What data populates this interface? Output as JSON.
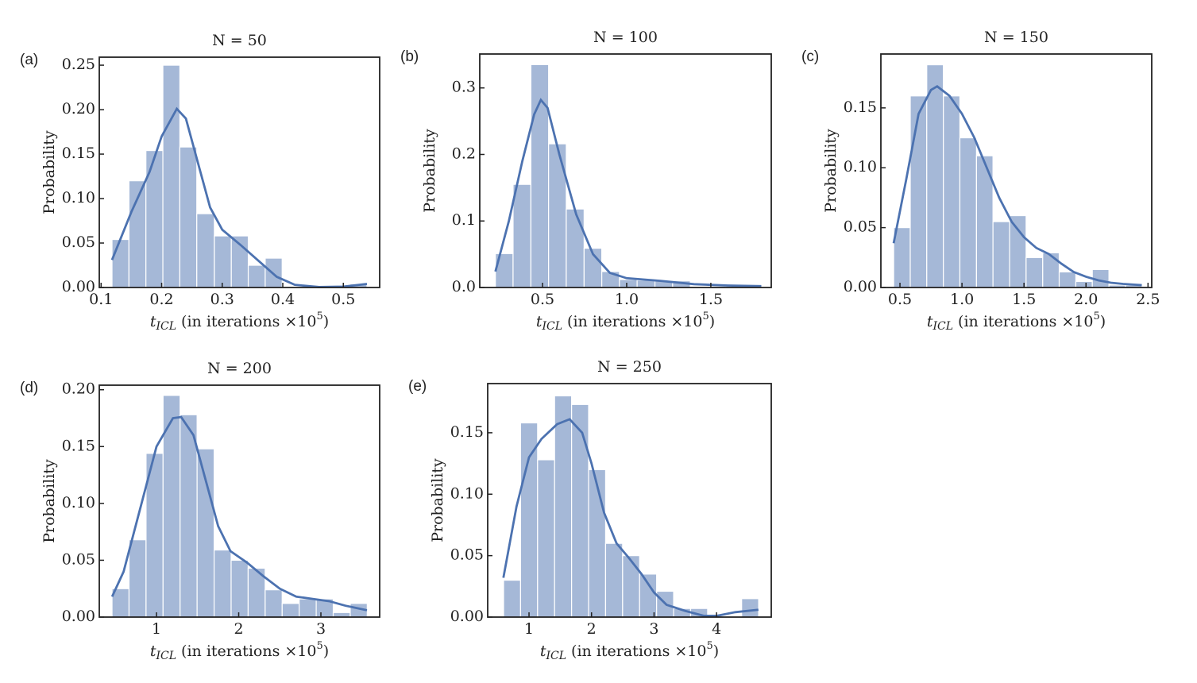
{
  "chart_data": [
    {
      "type": "histogram",
      "panel": "(a)",
      "title": "N = 50",
      "ylabel": "Probability",
      "xlabel": [
        "t",
        "ICL",
        " (in iterations ×10",
        "5",
        ")"
      ],
      "color": "#4c72b0",
      "bins": [
        0.118,
        0.146,
        0.174,
        0.202,
        0.23,
        0.258,
        0.287,
        0.315,
        0.343,
        0.371,
        0.399,
        0.427,
        0.455,
        0.483,
        0.511,
        0.539
      ],
      "values": [
        0.054,
        0.12,
        0.154,
        0.25,
        0.158,
        0.083,
        0.058,
        0.058,
        0.025,
        0.033,
        0,
        0,
        0,
        0,
        0.004
      ],
      "kde_x": [
        0.118,
        0.15,
        0.18,
        0.2,
        0.225,
        0.24,
        0.26,
        0.28,
        0.3,
        0.33,
        0.36,
        0.39,
        0.42,
        0.46,
        0.5,
        0.539
      ],
      "kde_y": [
        0.031,
        0.085,
        0.13,
        0.17,
        0.201,
        0.19,
        0.14,
        0.09,
        0.065,
        0.048,
        0.03,
        0.012,
        0.003,
        0.0005,
        0.001,
        0.004
      ],
      "xlim": [
        0.097,
        0.56
      ],
      "ylim": [
        0,
        0.259
      ],
      "xticks": [
        0.1,
        0.2,
        0.3,
        0.4,
        0.5
      ],
      "yticks": [
        {
          "value": 0,
          "label": "0.00"
        },
        {
          "value": 0.05,
          "label": "0.05"
        },
        {
          "value": 0.1,
          "label": "0.10"
        },
        {
          "value": 0.15,
          "label": "0.15"
        },
        {
          "value": 0.2,
          "label": "0.20"
        },
        {
          "value": 0.25,
          "label": "0.25"
        }
      ]
    },
    {
      "type": "histogram",
      "panel": "(b)",
      "title": "N = 100",
      "ylabel": "Probability",
      "xlabel": [
        "t",
        "ICL",
        " (in iterations ×10",
        "5",
        ")"
      ],
      "color": "#4c72b0",
      "bins": [
        0.22,
        0.325,
        0.431,
        0.536,
        0.641,
        0.747,
        0.852,
        0.957,
        1.062,
        1.168,
        1.273,
        1.378,
        1.484,
        1.589,
        1.694,
        1.8
      ],
      "values": [
        0.051,
        0.155,
        0.335,
        0.216,
        0.118,
        0.059,
        0.024,
        0.012,
        0.011,
        0.01,
        0.01,
        0,
        0.002,
        0.002,
        0.002
      ],
      "kde_x": [
        0.22,
        0.3,
        0.38,
        0.45,
        0.49,
        0.53,
        0.6,
        0.7,
        0.8,
        0.9,
        1.0,
        1.2,
        1.4,
        1.6,
        1.8
      ],
      "kde_y": [
        0.024,
        0.1,
        0.19,
        0.26,
        0.282,
        0.27,
        0.2,
        0.11,
        0.05,
        0.022,
        0.014,
        0.01,
        0.005,
        0.003,
        0.002
      ],
      "xlim": [
        0.127,
        1.859
      ],
      "ylim": [
        0,
        0.351
      ],
      "xticks": [
        0.5,
        {
          "value": 1,
          "label": "1.0"
        },
        1.5
      ],
      "yticks": [
        {
          "value": 0,
          "label": "0.0"
        },
        0.1,
        0.2,
        0.3
      ]
    },
    {
      "type": "histogram",
      "panel": "(c)",
      "title": "N = 150",
      "ylabel": "Probability",
      "xlabel": [
        "t",
        "ICL",
        " (in iterations ×10",
        "5",
        ")"
      ],
      "color": "#4c72b0",
      "bins": [
        0.449,
        0.583,
        0.716,
        0.85,
        0.983,
        1.117,
        1.25,
        1.384,
        1.517,
        1.651,
        1.784,
        1.918,
        2.051,
        2.185,
        2.318,
        2.452
      ],
      "values": [
        0.05,
        0.16,
        0.186,
        0.16,
        0.125,
        0.11,
        0.055,
        0.06,
        0.025,
        0.029,
        0.013,
        0.005,
        0.015,
        0.002,
        0.002
      ],
      "kde_x": [
        0.449,
        0.55,
        0.65,
        0.75,
        0.8,
        0.9,
        1.0,
        1.1,
        1.2,
        1.3,
        1.4,
        1.5,
        1.6,
        1.7,
        1.8,
        1.9,
        2.0,
        2.1,
        2.2,
        2.3,
        2.45
      ],
      "kde_y": [
        0.037,
        0.09,
        0.145,
        0.165,
        0.168,
        0.16,
        0.145,
        0.125,
        0.1,
        0.075,
        0.055,
        0.042,
        0.033,
        0.028,
        0.02,
        0.013,
        0.009,
        0.006,
        0.004,
        0.003,
        0.002
      ],
      "xlim": [
        0.346,
        2.53
      ],
      "ylim": [
        0,
        0.195
      ],
      "xticks": [
        0.5,
        {
          "value": 1,
          "label": "1.0"
        },
        1.5,
        {
          "value": 2,
          "label": "2.0"
        },
        2.5
      ],
      "yticks": [
        {
          "value": 0,
          "label": "0.00"
        },
        {
          "value": 0.05,
          "label": "0.05"
        },
        {
          "value": 0.1,
          "label": "0.10"
        },
        {
          "value": 0.15,
          "label": "0.15"
        }
      ]
    },
    {
      "type": "histogram",
      "panel": "(d)",
      "title": "N = 200",
      "ylabel": "Probability",
      "xlabel": [
        "t",
        "ICL",
        " (in iterations ×10",
        "5",
        ")"
      ],
      "color": "#4c72b0",
      "bins": [
        0.459,
        0.666,
        0.873,
        1.08,
        1.287,
        1.494,
        1.701,
        1.908,
        2.115,
        2.322,
        2.529,
        2.736,
        2.943,
        3.15,
        3.357,
        3.564
      ],
      "values": [
        0.025,
        0.068,
        0.144,
        0.195,
        0.178,
        0.148,
        0.059,
        0.05,
        0.043,
        0.024,
        0.012,
        0.016,
        0.016,
        0.004,
        0.012
      ],
      "kde_x": [
        0.46,
        0.6,
        0.8,
        1.0,
        1.2,
        1.3,
        1.45,
        1.6,
        1.75,
        1.9,
        2.1,
        2.3,
        2.5,
        2.7,
        2.9,
        3.1,
        3.3,
        3.56
      ],
      "kde_y": [
        0.018,
        0.04,
        0.095,
        0.15,
        0.175,
        0.176,
        0.16,
        0.12,
        0.08,
        0.058,
        0.048,
        0.036,
        0.025,
        0.018,
        0.016,
        0.014,
        0.01,
        0.006
      ],
      "xlim": [
        0.304,
        3.715
      ],
      "ylim": [
        0,
        0.204
      ],
      "xticks": [
        1,
        2,
        3
      ],
      "yticks": [
        {
          "value": 0,
          "label": "0.00"
        },
        {
          "value": 0.05,
          "label": "0.05"
        },
        {
          "value": 0.1,
          "label": "0.10"
        },
        {
          "value": 0.15,
          "label": "0.15"
        },
        {
          "value": 0.2,
          "label": "0.20"
        }
      ]
    },
    {
      "type": "histogram",
      "panel": "(e)",
      "title": "N = 250",
      "ylabel": "Probability",
      "xlabel": [
        "t",
        "ICL",
        " (in iterations ×10",
        "5",
        ")"
      ],
      "color": "#4c72b0",
      "bins": [
        0.593,
        0.865,
        1.137,
        1.409,
        1.681,
        1.953,
        2.225,
        2.497,
        2.769,
        3.041,
        3.313,
        3.585,
        3.857,
        4.129,
        4.401,
        4.673
      ],
      "values": [
        0.03,
        0.158,
        0.128,
        0.18,
        0.173,
        0.12,
        0.06,
        0.05,
        0.035,
        0.021,
        0.007,
        0.007,
        0,
        0,
        0.015
      ],
      "kde_x": [
        0.59,
        0.8,
        1.0,
        1.2,
        1.45,
        1.65,
        1.85,
        2.0,
        2.2,
        2.4,
        2.6,
        2.8,
        3.0,
        3.2,
        3.5,
        3.8,
        4.0,
        4.3,
        4.67
      ],
      "kde_y": [
        0.032,
        0.09,
        0.13,
        0.145,
        0.157,
        0.161,
        0.15,
        0.125,
        0.085,
        0.06,
        0.048,
        0.035,
        0.02,
        0.01,
        0.005,
        0.001,
        0.001,
        0.004,
        0.006
      ],
      "xlim": [
        0.339,
        4.875
      ],
      "ylim": [
        0,
        0.19
      ],
      "xticks": [
        1,
        2,
        3,
        4
      ],
      "yticks": [
        {
          "value": 0,
          "label": "0.00"
        },
        {
          "value": 0.05,
          "label": "0.05"
        },
        {
          "value": 0.1,
          "label": "0.10"
        },
        {
          "value": 0.15,
          "label": "0.15"
        }
      ]
    }
  ]
}
